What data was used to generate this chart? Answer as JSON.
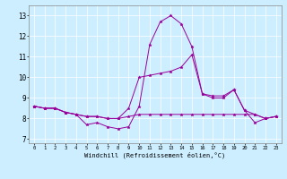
{
  "xlabel": "Windchill (Refroidissement éolien,°C)",
  "bg_color": "#cceeff",
  "line_color": "#990099",
  "xlim": [
    -0.5,
    23.5
  ],
  "ylim": [
    6.8,
    13.5
  ],
  "yticks": [
    7,
    8,
    9,
    10,
    11,
    12,
    13
  ],
  "xticks": [
    0,
    1,
    2,
    3,
    4,
    5,
    6,
    7,
    8,
    9,
    10,
    11,
    12,
    13,
    14,
    15,
    16,
    17,
    18,
    19,
    20,
    21,
    22,
    23
  ],
  "series": [
    [
      8.6,
      8.5,
      8.5,
      8.3,
      8.2,
      7.7,
      7.8,
      7.6,
      7.5,
      7.6,
      8.6,
      11.6,
      12.7,
      13.0,
      12.6,
      11.5,
      9.2,
      9.0,
      9.0,
      9.4,
      8.4,
      7.8,
      8.0,
      8.1
    ],
    [
      8.6,
      8.5,
      8.5,
      8.3,
      8.2,
      8.1,
      8.1,
      8.0,
      8.0,
      8.5,
      10.0,
      10.1,
      10.2,
      10.3,
      10.5,
      11.1,
      9.2,
      9.1,
      9.1,
      9.4,
      8.4,
      8.2,
      8.0,
      8.1
    ],
    [
      8.6,
      8.5,
      8.5,
      8.3,
      8.2,
      8.1,
      8.1,
      8.0,
      8.0,
      8.1,
      8.2,
      8.2,
      8.2,
      8.2,
      8.2,
      8.2,
      8.2,
      8.2,
      8.2,
      8.2,
      8.2,
      8.2,
      8.0,
      8.1
    ]
  ]
}
